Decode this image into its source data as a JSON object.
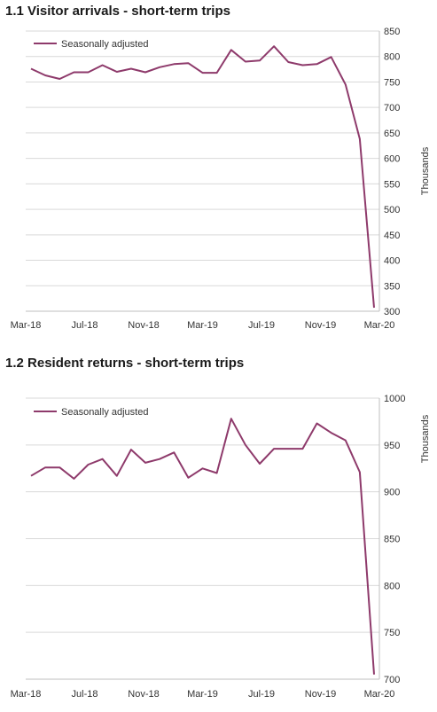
{
  "chart_data": [
    {
      "type": "line",
      "title": "1.1 Visitor arrivals - short-term trips",
      "ylabel": "Thousands",
      "xlabel": "",
      "ylim": [
        300,
        850
      ],
      "yticks": [
        300,
        350,
        400,
        450,
        500,
        550,
        600,
        650,
        700,
        750,
        800,
        850
      ],
      "x": [
        "Mar-18",
        "Apr-18",
        "May-18",
        "Jun-18",
        "Jul-18",
        "Aug-18",
        "Sep-18",
        "Oct-18",
        "Nov-18",
        "Dec-18",
        "Jan-19",
        "Feb-19",
        "Mar-19",
        "Apr-19",
        "May-19",
        "Jun-19",
        "Jul-19",
        "Aug-19",
        "Sep-19",
        "Oct-19",
        "Nov-19",
        "Dec-19",
        "Jan-20",
        "Feb-20",
        "Mar-20"
      ],
      "xtick_labels": [
        "Mar-18",
        "Jul-18",
        "Nov-18",
        "Mar-19",
        "Jul-19",
        "Nov-19",
        "Mar-20"
      ],
      "series": [
        {
          "name": "Seasonally adjusted",
          "color": "#8e3a6b",
          "values": [
            776,
            763,
            756,
            769,
            769,
            783,
            770,
            776,
            769,
            779,
            785,
            787,
            768,
            768,
            813,
            790,
            792,
            820,
            789,
            783,
            785,
            799,
            745,
            638,
            307
          ]
        }
      ],
      "legend": "top-left",
      "grid": "horizontal",
      "y_axis_side": "right"
    },
    {
      "type": "line",
      "title": "1.2 Resident returns - short-term trips",
      "ylabel": "Thousands",
      "xlabel": "",
      "ylim": [
        700,
        1000
      ],
      "yticks": [
        700,
        750,
        800,
        850,
        900,
        950,
        1000
      ],
      "x": [
        "Mar-18",
        "Apr-18",
        "May-18",
        "Jun-18",
        "Jul-18",
        "Aug-18",
        "Sep-18",
        "Oct-18",
        "Nov-18",
        "Dec-18",
        "Jan-19",
        "Feb-19",
        "Mar-19",
        "Apr-19",
        "May-19",
        "Jun-19",
        "Jul-19",
        "Aug-19",
        "Sep-19",
        "Oct-19",
        "Nov-19",
        "Dec-19",
        "Jan-20",
        "Feb-20",
        "Mar-20"
      ],
      "xtick_labels": [
        "Mar-18",
        "Jul-18",
        "Nov-18",
        "Mar-19",
        "Jul-19",
        "Nov-19",
        "Mar-20"
      ],
      "series": [
        {
          "name": "Seasonally adjusted",
          "color": "#8e3a6b",
          "values": [
            917,
            926,
            926,
            914,
            929,
            935,
            917,
            945,
            931,
            935,
            942,
            915,
            925,
            920,
            978,
            950,
            930,
            946,
            946,
            946,
            973,
            963,
            955,
            921,
            705
          ]
        }
      ],
      "legend": "top-left",
      "grid": "horizontal",
      "y_axis_side": "right"
    }
  ]
}
